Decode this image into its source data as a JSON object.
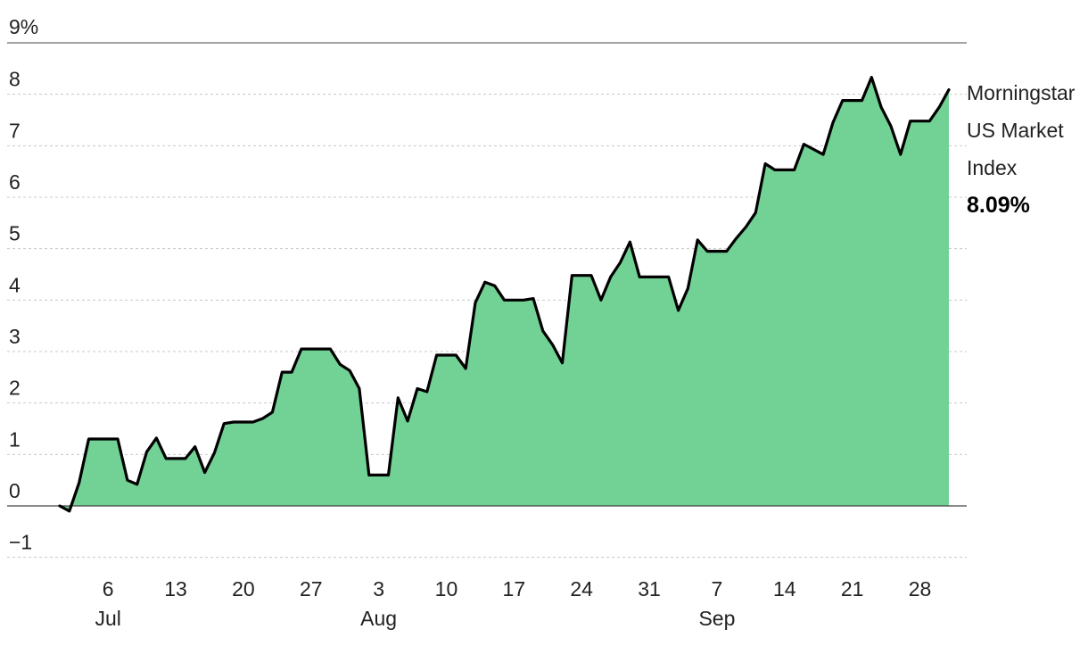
{
  "chart_data": {
    "type": "area",
    "y_top_label": "9%",
    "y_ticks": [
      "8",
      "7",
      "6",
      "5",
      "4",
      "3",
      "2",
      "1",
      "0",
      "−1"
    ],
    "ylim": [
      -1.1,
      9
    ],
    "x_ticks": [
      {
        "day": 6,
        "label": "6"
      },
      {
        "day": 13,
        "label": "13"
      },
      {
        "day": 20,
        "label": "20"
      },
      {
        "day": 27,
        "label": "27"
      },
      {
        "day": 34,
        "label": "3"
      },
      {
        "day": 41,
        "label": "10"
      },
      {
        "day": 48,
        "label": "17"
      },
      {
        "day": 55,
        "label": "24"
      },
      {
        "day": 62,
        "label": "31"
      },
      {
        "day": 69,
        "label": "7"
      },
      {
        "day": 76,
        "label": "14"
      },
      {
        "day": 83,
        "label": "21"
      },
      {
        "day": 90,
        "label": "28"
      }
    ],
    "month_labels": [
      {
        "day": 6,
        "label": "Jul"
      },
      {
        "day": 34,
        "label": "Aug"
      },
      {
        "day": 69,
        "label": "Sep"
      }
    ],
    "xlim": [
      -0.5,
      92.8
    ],
    "series": [
      {
        "name": "Morningstar US Market Index",
        "points": [
          [
            1,
            0
          ],
          [
            2,
            -0.1
          ],
          [
            3,
            0.45
          ],
          [
            4,
            1.3
          ],
          [
            5,
            1.3
          ],
          [
            6,
            1.3
          ],
          [
            7,
            1.3
          ],
          [
            8,
            0.5
          ],
          [
            9,
            0.42
          ],
          [
            10,
            1.05
          ],
          [
            11,
            1.32
          ],
          [
            12,
            0.92
          ],
          [
            13,
            0.92
          ],
          [
            14,
            0.92
          ],
          [
            15,
            1.15
          ],
          [
            16,
            0.65
          ],
          [
            17,
            1.03
          ],
          [
            18,
            1.6
          ],
          [
            19,
            1.63
          ],
          [
            20,
            1.63
          ],
          [
            21,
            1.63
          ],
          [
            22,
            1.7
          ],
          [
            23,
            1.82
          ],
          [
            24,
            2.6
          ],
          [
            25,
            2.6
          ],
          [
            26,
            3.05
          ],
          [
            27,
            3.05
          ],
          [
            28,
            3.05
          ],
          [
            29,
            3.05
          ],
          [
            30,
            2.75
          ],
          [
            31,
            2.63
          ],
          [
            32,
            2.28
          ],
          [
            33,
            0.6
          ],
          [
            34,
            0.6
          ],
          [
            35,
            0.6
          ],
          [
            36,
            2.1
          ],
          [
            37,
            1.65
          ],
          [
            38,
            2.28
          ],
          [
            39,
            2.22
          ],
          [
            40,
            2.93
          ],
          [
            41,
            2.93
          ],
          [
            42,
            2.93
          ],
          [
            43,
            2.67
          ],
          [
            44,
            3.95
          ],
          [
            45,
            4.35
          ],
          [
            46,
            4.28
          ],
          [
            47,
            4.0
          ],
          [
            48,
            4.0
          ],
          [
            49,
            4.0
          ],
          [
            50,
            4.03
          ],
          [
            51,
            3.4
          ],
          [
            52,
            3.13
          ],
          [
            53,
            2.78
          ],
          [
            54,
            4.48
          ],
          [
            55,
            4.48
          ],
          [
            56,
            4.48
          ],
          [
            57,
            4.0
          ],
          [
            58,
            4.45
          ],
          [
            59,
            4.73
          ],
          [
            60,
            5.13
          ],
          [
            61,
            4.45
          ],
          [
            62,
            4.45
          ],
          [
            63,
            4.45
          ],
          [
            64,
            4.45
          ],
          [
            65,
            3.8
          ],
          [
            66,
            4.23
          ],
          [
            67,
            5.17
          ],
          [
            68,
            4.95
          ],
          [
            69,
            4.95
          ],
          [
            70,
            4.95
          ],
          [
            71,
            5.2
          ],
          [
            72,
            5.42
          ],
          [
            73,
            5.7
          ],
          [
            74,
            6.65
          ],
          [
            75,
            6.53
          ],
          [
            76,
            6.53
          ],
          [
            77,
            6.53
          ],
          [
            78,
            7.03
          ],
          [
            79,
            6.93
          ],
          [
            80,
            6.83
          ],
          [
            81,
            7.45
          ],
          [
            82,
            7.88
          ],
          [
            83,
            7.88
          ],
          [
            84,
            7.88
          ],
          [
            85,
            8.33
          ],
          [
            86,
            7.75
          ],
          [
            87,
            7.38
          ],
          [
            88,
            6.83
          ],
          [
            89,
            7.48
          ],
          [
            90,
            7.48
          ],
          [
            91,
            7.48
          ],
          [
            92,
            7.75
          ],
          [
            93,
            8.09
          ]
        ]
      }
    ],
    "legend": {
      "lines": [
        "Morningstar",
        "US Market",
        "Index"
      ],
      "value": "8.09%",
      "placement": "right"
    },
    "colors": {
      "fill": "#72d195",
      "line": "#000000",
      "grid": "#c8c8c8",
      "axis": "#444444"
    },
    "grid": true
  }
}
